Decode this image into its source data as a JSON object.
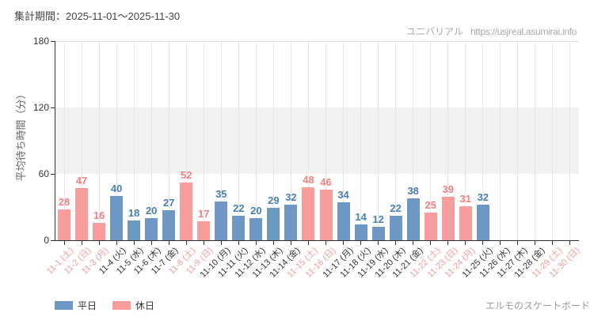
{
  "header": {
    "period_label": "集計期間：2025-11-01～2025-11-30"
  },
  "credit": {
    "site_name": "ユニバリアル",
    "site_url": "https://usjreal.asumirai.info"
  },
  "footer": {
    "legend": [
      {
        "key": "weekday",
        "label": "平日",
        "color": "#6d98c4"
      },
      {
        "key": "holiday",
        "label": "休日",
        "color": "#f89c9c"
      }
    ],
    "attraction_name": "エルモのスケートボード"
  },
  "chart_data": {
    "type": "bar",
    "title": "",
    "xlabel": "",
    "ylabel": "平均待ち時間（分）",
    "ylim": [
      0,
      180
    ],
    "yticks": [
      0,
      60,
      120,
      180
    ],
    "band": {
      "from": 60,
      "to": 120,
      "color": "#f1f1f1"
    },
    "grid": "vertical-day-gridlines",
    "legend_position": "bottom-left",
    "categories": [
      "11-1 (土)",
      "11-2 (日)",
      "11-3 (月)",
      "11-4 (火)",
      "11-5 (水)",
      "11-6 (木)",
      "11-7 (金)",
      "11-8 (土)",
      "11-9 (日)",
      "11-10 (月)",
      "11-11 (火)",
      "11-12 (水)",
      "11-13 (木)",
      "11-14 (金)",
      "11-15 (土)",
      "11-16 (日)",
      "11-17 (月)",
      "11-18 (火)",
      "11-19 (水)",
      "11-20 (木)",
      "11-21 (金)",
      "11-22 (土)",
      "11-23 (日)",
      "11-24 (月)",
      "11-25 (火)",
      "11-26 (水)",
      "11-27 (木)",
      "11-28 (金)",
      "11-29 (土)",
      "11-30 (日)"
    ],
    "values": [
      28,
      47,
      16,
      40,
      18,
      20,
      27,
      52,
      17,
      35,
      22,
      20,
      29,
      32,
      48,
      46,
      34,
      14,
      12,
      22,
      38,
      25,
      39,
      31,
      32,
      null,
      null,
      null,
      null,
      null
    ],
    "day_types": [
      "holiday",
      "holiday",
      "holiday",
      "weekday",
      "weekday",
      "weekday",
      "weekday",
      "holiday",
      "holiday",
      "weekday",
      "weekday",
      "weekday",
      "weekday",
      "weekday",
      "holiday",
      "holiday",
      "weekday",
      "weekday",
      "weekday",
      "weekday",
      "weekday",
      "holiday",
      "holiday",
      "holiday",
      "weekday",
      "weekday",
      "weekday",
      "weekday",
      "holiday",
      "holiday"
    ],
    "colors": {
      "weekday": "#6d98c4",
      "holiday": "#f89c9c",
      "weekday_value_label": "#4a7fb5",
      "holiday_value_label": "#f57e7e",
      "weekday_tick_label": "#333333",
      "holiday_tick_label": "#f59a9a"
    }
  }
}
